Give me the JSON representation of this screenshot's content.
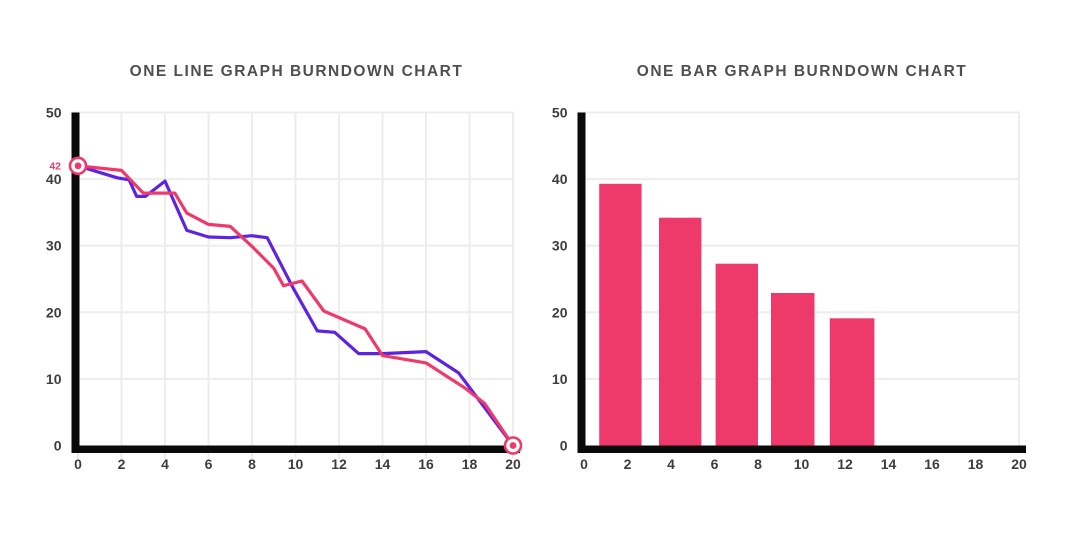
{
  "page": {
    "background": "#ffffff"
  },
  "style": {
    "grid_color": "#ededed",
    "axis_color": "#0a0a0a",
    "tick_color": "#3d3d3d",
    "title_color": "#4f4f4f",
    "accent_pink": "#ee3a6b",
    "accent_blue": "#5d23e1"
  },
  "chart_data": [
    {
      "type": "line",
      "title": "ONE LINE GRAPH BURNDOWN CHART",
      "xlabel": "",
      "ylabel": "",
      "xlim": [
        0,
        20
      ],
      "ylim": [
        0,
        50
      ],
      "x_ticks": [
        0,
        2,
        4,
        6,
        8,
        10,
        12,
        14,
        16,
        18,
        20
      ],
      "y_ticks": [
        0,
        10,
        20,
        30,
        40,
        50
      ],
      "grid": {
        "horizontal": true,
        "vertical": true
      },
      "legend": "none",
      "annotations": {
        "start_label": "42",
        "start_point": {
          "x": 0,
          "y": 42
        },
        "end_point": {
          "x": 20,
          "y": 0
        },
        "marker_color": "#ee3a6b"
      },
      "series": [
        {
          "name": "blue-line",
          "color": "#5d23e1",
          "points": [
            [
              0,
              42
            ],
            [
              1.8,
              40.2
            ],
            [
              2.35,
              39.9
            ],
            [
              2.7,
              37.4
            ],
            [
              3.1,
              37.4
            ],
            [
              4,
              39.7
            ],
            [
              5,
              32.3
            ],
            [
              6,
              31.3
            ],
            [
              7,
              31.2
            ],
            [
              8,
              31.5
            ],
            [
              8.7,
              31.2
            ],
            [
              9.9,
              23.6
            ],
            [
              11,
              17.2
            ],
            [
              11.8,
              17
            ],
            [
              12.9,
              13.8
            ],
            [
              14,
              13.8
            ],
            [
              16,
              14.1
            ],
            [
              17.5,
              10.9
            ],
            [
              20,
              0
            ]
          ]
        },
        {
          "name": "pink-line",
          "color": "#ee3a6b",
          "points": [
            [
              0,
              42
            ],
            [
              2,
              41.3
            ],
            [
              3,
              37.9
            ],
            [
              4.45,
              37.9
            ],
            [
              5,
              34.9
            ],
            [
              6,
              33.2
            ],
            [
              7,
              32.9
            ],
            [
              8,
              29.9
            ],
            [
              9,
              26.6
            ],
            [
              9.45,
              24
            ],
            [
              10.3,
              24.7
            ],
            [
              11.3,
              20.2
            ],
            [
              13.2,
              17.5
            ],
            [
              14,
              13.5
            ],
            [
              16,
              12.4
            ],
            [
              17.8,
              8.6
            ],
            [
              18.7,
              6.3
            ],
            [
              20,
              0
            ]
          ]
        }
      ]
    },
    {
      "type": "bar",
      "title": "ONE BAR GRAPH BURNDOWN CHART",
      "xlabel": "",
      "ylabel": "",
      "xlim": [
        0,
        20
      ],
      "ylim": [
        0,
        50
      ],
      "x_ticks": [
        0,
        2,
        4,
        6,
        8,
        10,
        12,
        14,
        16,
        18,
        20
      ],
      "y_ticks": [
        0,
        10,
        20,
        30,
        40,
        50
      ],
      "grid": {
        "horizontal": true,
        "vertical": false
      },
      "legend": "none",
      "bar_color": "#ee3a6b",
      "bars": [
        {
          "x0": 0.7,
          "x1": 2.65,
          "value": 39.3
        },
        {
          "x0": 3.45,
          "x1": 5.4,
          "value": 34.2
        },
        {
          "x0": 6.05,
          "x1": 8.0,
          "value": 27.3
        },
        {
          "x0": 8.6,
          "x1": 10.6,
          "value": 22.9
        },
        {
          "x0": 11.3,
          "x1": 13.35,
          "value": 19.1
        }
      ]
    }
  ]
}
